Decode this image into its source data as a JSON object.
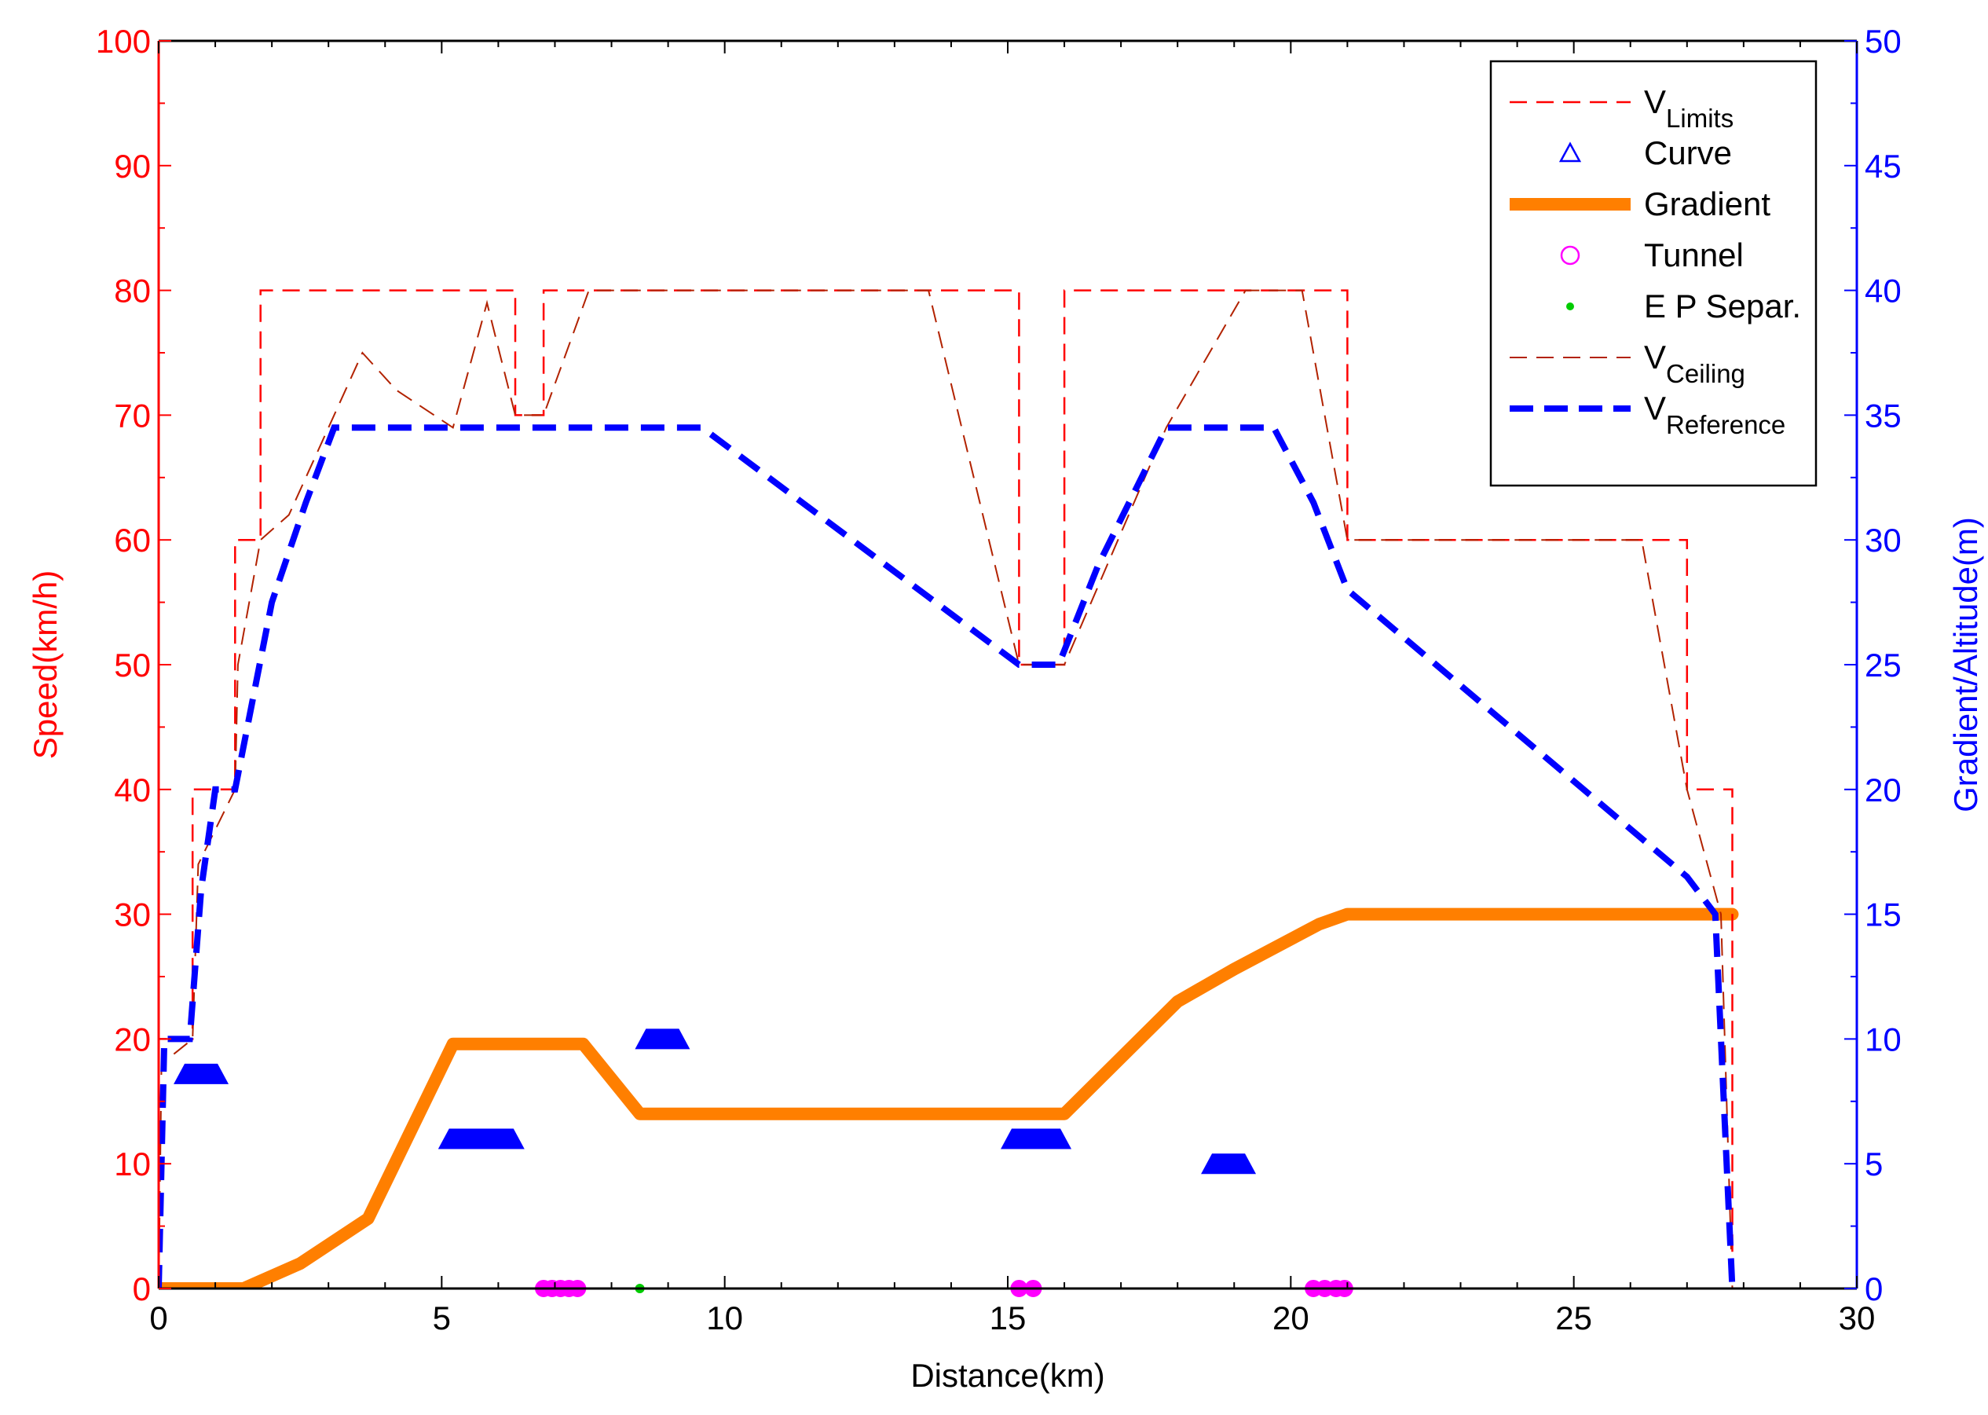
{
  "chart_data": {
    "type": "line",
    "xlabel": "Distance(km)",
    "ylabel_left": "Speed(km/h)",
    "ylabel_right": "Gradient/Altitude(m)",
    "xlim": [
      0,
      30
    ],
    "ylim_left": [
      0,
      100
    ],
    "ylim_right": [
      0,
      50
    ],
    "x_ticks": [
      "0",
      "5",
      "10",
      "15",
      "20",
      "25",
      "30"
    ],
    "y_left_ticks": [
      "0",
      "10",
      "20",
      "30",
      "40",
      "50",
      "60",
      "70",
      "80",
      "90",
      "100"
    ],
    "y_right_ticks": [
      "0",
      "5",
      "10",
      "15",
      "20",
      "25",
      "30",
      "35",
      "40",
      "45",
      "50"
    ],
    "colors": {
      "left_axis": "#ff0000",
      "right_axis": "#0000ff",
      "v_limits": "#ff0000",
      "v_ceiling": "#b22200",
      "v_reference": "#0000ff",
      "gradient": "#ff7f00",
      "curve": "#0000ff",
      "tunnel": "#ff00ff",
      "ep_separ": "#00cc00"
    },
    "legend": {
      "placement": "top-right",
      "entries": [
        {
          "key": "v_limits",
          "text": "V",
          "sub": "Limits"
        },
        {
          "key": "curve",
          "text": "Curve",
          "sub": ""
        },
        {
          "key": "gradient",
          "text": "Gradient",
          "sub": ""
        },
        {
          "key": "tunnel",
          "text": "Tunnel",
          "sub": ""
        },
        {
          "key": "ep_separ",
          "text": "E P Separ.",
          "sub": ""
        },
        {
          "key": "v_ceiling",
          "text": "V",
          "sub": "Ceiling"
        },
        {
          "key": "v_reference",
          "text": "V",
          "sub": "Reference"
        }
      ]
    },
    "series": {
      "v_limits": [
        [
          0,
          0
        ],
        [
          0,
          20
        ],
        [
          0.6,
          20
        ],
        [
          0.6,
          40
        ],
        [
          1.35,
          40
        ],
        [
          1.35,
          60
        ],
        [
          1.8,
          60
        ],
        [
          1.8,
          80
        ],
        [
          6.3,
          80
        ],
        [
          6.3,
          70
        ],
        [
          6.8,
          70
        ],
        [
          6.8,
          80
        ],
        [
          15.2,
          80
        ],
        [
          15.2,
          50
        ],
        [
          16.0,
          50
        ],
        [
          16.0,
          80
        ],
        [
          21.0,
          80
        ],
        [
          21.0,
          60
        ],
        [
          27.0,
          60
        ],
        [
          27.0,
          40
        ],
        [
          27.8,
          40
        ],
        [
          27.8,
          0
        ]
      ],
      "v_ceiling": [
        [
          0,
          0
        ],
        [
          0.05,
          18
        ],
        [
          0.6,
          20
        ],
        [
          0.7,
          34
        ],
        [
          1.35,
          40
        ],
        [
          1.4,
          50
        ],
        [
          1.8,
          60
        ],
        [
          2.3,
          62
        ],
        [
          3.6,
          75
        ],
        [
          4.2,
          72
        ],
        [
          5.2,
          69
        ],
        [
          5.8,
          79
        ],
        [
          6.3,
          70
        ],
        [
          6.8,
          70
        ],
        [
          7.6,
          80
        ],
        [
          13.6,
          80
        ],
        [
          15.2,
          50
        ],
        [
          16.0,
          50
        ],
        [
          17.8,
          69
        ],
        [
          19.2,
          80
        ],
        [
          20.2,
          80
        ],
        [
          21.0,
          60
        ],
        [
          26.2,
          60
        ],
        [
          27.0,
          40
        ],
        [
          27.6,
          30
        ],
        [
          27.8,
          0
        ]
      ],
      "v_reference": [
        [
          0,
          0
        ],
        [
          0.1,
          20
        ],
        [
          0.55,
          20
        ],
        [
          0.75,
          32
        ],
        [
          1.0,
          40
        ],
        [
          1.35,
          40
        ],
        [
          2.0,
          55
        ],
        [
          2.6,
          63
        ],
        [
          3.1,
          69
        ],
        [
          9.6,
          69
        ],
        [
          15.2,
          50
        ],
        [
          15.9,
          50
        ],
        [
          16.6,
          58
        ],
        [
          17.8,
          69
        ],
        [
          19.7,
          69
        ],
        [
          20.4,
          63
        ],
        [
          21.0,
          56
        ],
        [
          27.0,
          33
        ],
        [
          27.5,
          30
        ],
        [
          27.8,
          0
        ]
      ],
      "gradient": [
        [
          0,
          0
        ],
        [
          1.5,
          0
        ],
        [
          2.5,
          1.0
        ],
        [
          3.7,
          2.8
        ],
        [
          5.2,
          9.8
        ],
        [
          7.5,
          9.8
        ],
        [
          8.5,
          7.0
        ],
        [
          16.0,
          7.0
        ],
        [
          18.0,
          11.5
        ],
        [
          19.0,
          12.8
        ],
        [
          20.5,
          14.6
        ],
        [
          21.0,
          15.0
        ],
        [
          27.8,
          15.0
        ]
      ],
      "curve": [
        [
          0.75,
          8.6
        ],
        [
          5.7,
          6.0
        ],
        [
          8.9,
          10.0
        ],
        [
          15.5,
          6.0
        ],
        [
          18.9,
          5.0
        ]
      ],
      "tunnel": [
        [
          6.8,
          0
        ],
        [
          6.95,
          0
        ],
        [
          7.1,
          0
        ],
        [
          7.25,
          0
        ],
        [
          7.4,
          0
        ],
        [
          15.2,
          0
        ],
        [
          15.45,
          0
        ],
        [
          20.4,
          0
        ],
        [
          20.6,
          0
        ],
        [
          20.8,
          0
        ],
        [
          20.95,
          0
        ]
      ],
      "ep_separ": [
        [
          8.5,
          0
        ]
      ]
    }
  }
}
